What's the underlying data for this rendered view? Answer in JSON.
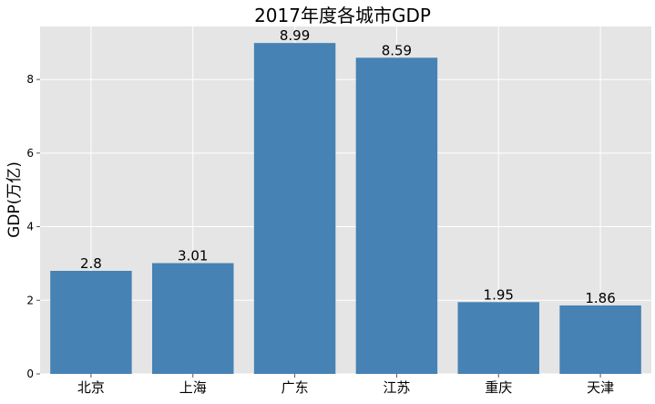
{
  "chart_data": {
    "type": "bar",
    "title": "2017年度各城市GDP",
    "xlabel": "",
    "ylabel": "GDP(万亿)",
    "categories": [
      "北京",
      "上海",
      "广东",
      "江苏",
      "重庆",
      "天津"
    ],
    "values": [
      2.8,
      3.01,
      8.99,
      8.59,
      1.95,
      1.86
    ],
    "value_labels": [
      "2.8",
      "3.01",
      "8.99",
      "8.59",
      "1.95",
      "1.86"
    ],
    "ylim": [
      0,
      9.44
    ],
    "yticks": [
      0,
      2,
      4,
      6,
      8
    ],
    "ytick_labels": [
      "0",
      "2",
      "4",
      "6",
      "8"
    ],
    "grid": true,
    "legend": "none",
    "colors": {
      "bar": "#4682b4",
      "plot_background": "#e5e5e5",
      "grid": "#ffffff",
      "text": "#000000"
    }
  }
}
